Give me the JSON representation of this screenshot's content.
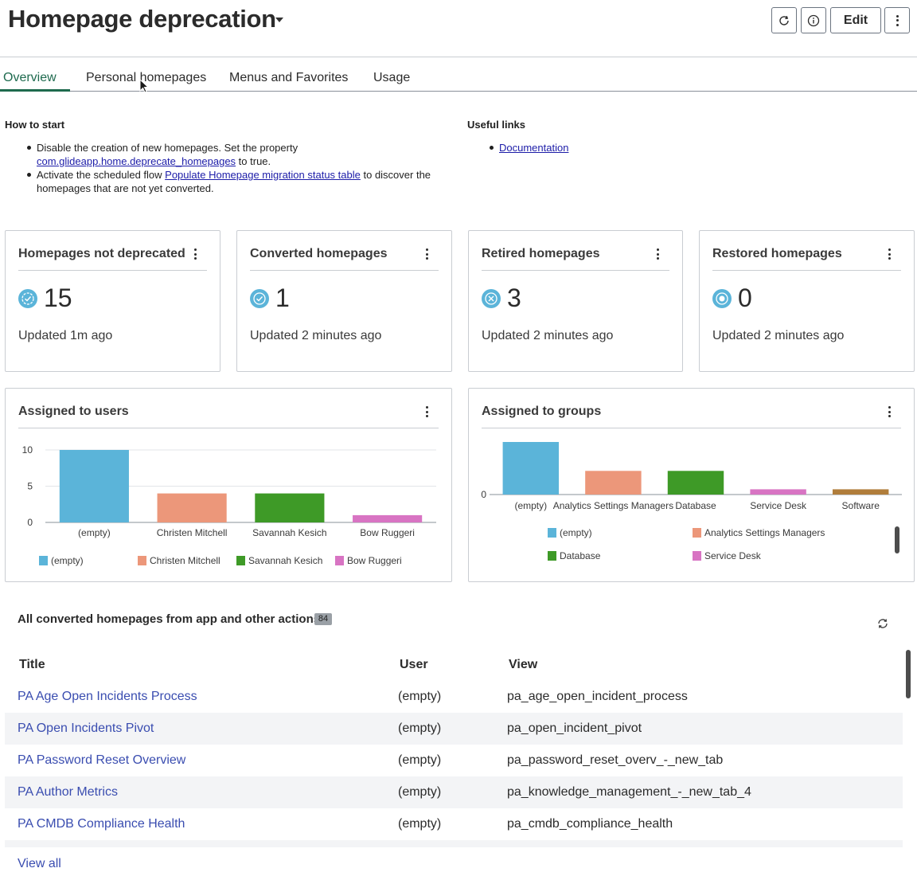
{
  "header": {
    "title": "Homepage deprecation",
    "edit_label": "Edit",
    "icons": [
      "refresh-icon",
      "info-icon",
      "more-vertical-icon"
    ]
  },
  "tabs": [
    {
      "label": "Overview",
      "active": true
    },
    {
      "label": "Personal homepages",
      "active": false
    },
    {
      "label": "Menus and Favorites",
      "active": false
    },
    {
      "label": "Usage",
      "active": false
    }
  ],
  "how_to_start": {
    "heading": "How to start",
    "item1_text_a": "Disable the creation of new homepages. Set the property",
    "item1_link": "com.glideapp.home.deprecate_homepages",
    "item1_text_b": " to true.",
    "item2_text_a": "Activate the scheduled flow ",
    "item2_link": "Populate Homepage migration status table",
    "item2_text_b": " to discover the",
    "item2_text_c": "homepages that are not yet converted."
  },
  "useful_links": {
    "heading": "Useful links",
    "items": [
      "Documentation"
    ]
  },
  "stats": [
    {
      "title": "Homepages not deprecated",
      "value": "15",
      "updated": "Updated 1m ago",
      "icon": "check-circle-icon"
    },
    {
      "title": "Converted homepages",
      "value": "1",
      "updated": "Updated 2 minutes ago",
      "icon": "check-circle-icon"
    },
    {
      "title": "Retired homepages",
      "value": "3",
      "updated": "Updated 2 minutes ago",
      "icon": "x-circle-icon"
    },
    {
      "title": "Restored homepages",
      "value": "0",
      "updated": "Updated 2 minutes ago",
      "icon": "target-circle-icon"
    }
  ],
  "colors": {
    "accent": "#1e6a4e",
    "link": "#3a4db0",
    "series": [
      "#5bb4d9",
      "#ec977a",
      "#3e9a27",
      "#d874c3",
      "#b07d3b"
    ]
  },
  "chart_data": [
    {
      "type": "bar",
      "title": "Assigned to users",
      "categories": [
        "(empty)",
        "Christen Mitchell",
        "Savannah Kesich",
        "Bow Ruggeri"
      ],
      "values": [
        10,
        4,
        4,
        1
      ],
      "ylim": [
        0,
        10
      ],
      "yticks": [
        "10",
        "5",
        "0"
      ],
      "grid": true,
      "legend": "bottom",
      "legend_entries": [
        "(empty)",
        "Christen Mitchell",
        "Savannah Kesich",
        "Bow Ruggeri"
      ]
    },
    {
      "type": "bar",
      "title": "Assigned to groups",
      "categories": [
        "(empty)",
        "Analytics Settings Managers",
        "Database",
        "Service Desk",
        "Software"
      ],
      "values": [
        10,
        4.5,
        4.5,
        1,
        1
      ],
      "yticks": [
        "0"
      ],
      "grid": false,
      "legend": "bottom",
      "legend_entries": [
        "(empty)",
        "Analytics Settings Managers",
        "Database",
        "Service Desk"
      ]
    }
  ],
  "table": {
    "title": "All converted homepages from app and other actions",
    "count": "84",
    "columns": [
      "Title",
      "User",
      "View"
    ],
    "rows": [
      {
        "title": "PA Age Open Incidents Process",
        "user": "(empty)",
        "view": "pa_age_open_incident_process"
      },
      {
        "title": "PA Open Incidents Pivot",
        "user": "(empty)",
        "view": "pa_open_incident_pivot"
      },
      {
        "title": "PA Password Reset Overview",
        "user": "(empty)",
        "view": "pa_password_reset_overv_-_new_tab"
      },
      {
        "title": "PA Author Metrics",
        "user": "(empty)",
        "view": "pa_knowledge_management_-_new_tab_4"
      },
      {
        "title": "PA CMDB Compliance Health",
        "user": "(empty)",
        "view": "pa_cmdb_compliance_health"
      }
    ],
    "view_all_label": "View all"
  }
}
